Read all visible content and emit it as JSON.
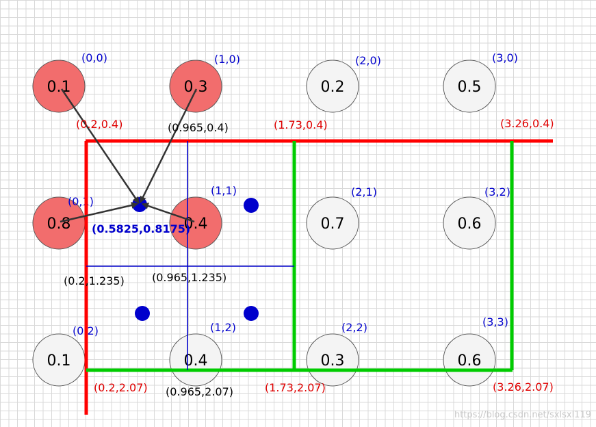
{
  "colors": {
    "grid": "#d9d9d9",
    "highlight_fill": "#f26d6d",
    "plain_fill": "#f4f4f4",
    "circle_stroke": "#555555",
    "red": "#ff0000",
    "green": "#00cc00",
    "blue": "#0000cc",
    "label_red": "#e00000",
    "label_blue": "#0000cc",
    "label_black": "#000000",
    "arrow": "#333333"
  },
  "cells": [
    {
      "index": "(0,0)",
      "value": "0.1",
      "highlight": true
    },
    {
      "index": "(1,0)",
      "value": "0.3",
      "highlight": true
    },
    {
      "index": "(2,0)",
      "value": "0.2",
      "highlight": false
    },
    {
      "index": "(3,0)",
      "value": "0.5",
      "highlight": false
    },
    {
      "index": "(0,1)",
      "value": "0.8",
      "highlight": true
    },
    {
      "index": "(1,1)",
      "value": "0.4",
      "highlight": true
    },
    {
      "index": "(2,1)",
      "value": "0.7",
      "highlight": false
    },
    {
      "index": "(3,2)",
      "value": "0.6",
      "highlight": false
    },
    {
      "index": "(0,2)",
      "value": "0.1",
      "highlight": false
    },
    {
      "index": "(1,2)",
      "value": "0.4",
      "highlight": false
    },
    {
      "index": "(2,2)",
      "value": "0.3",
      "highlight": false
    },
    {
      "index": "(3,3)",
      "value": "0.6",
      "highlight": false
    }
  ],
  "coordinate_labels": {
    "red_top_left": "(0.2,0.4)",
    "red_top_mid": "(1.73,0.4)",
    "red_top_right": "(3.26,0.4)",
    "red_bottom_left": "(0.2,2.07)",
    "red_bottom_mid": "(1.73,2.07)",
    "red_bottom_right": "(3.26,2.07)",
    "black_top": "(0.965,0.4)",
    "black_mid_left": "(0.2,1.235)",
    "black_mid_right": "(0.965,1.235)",
    "black_bottom": "(0.965,2.07)"
  },
  "sample_point_label": "(0.5825,0.8175)",
  "watermark": "https://blog.csdn.net/sxlsxl119"
}
